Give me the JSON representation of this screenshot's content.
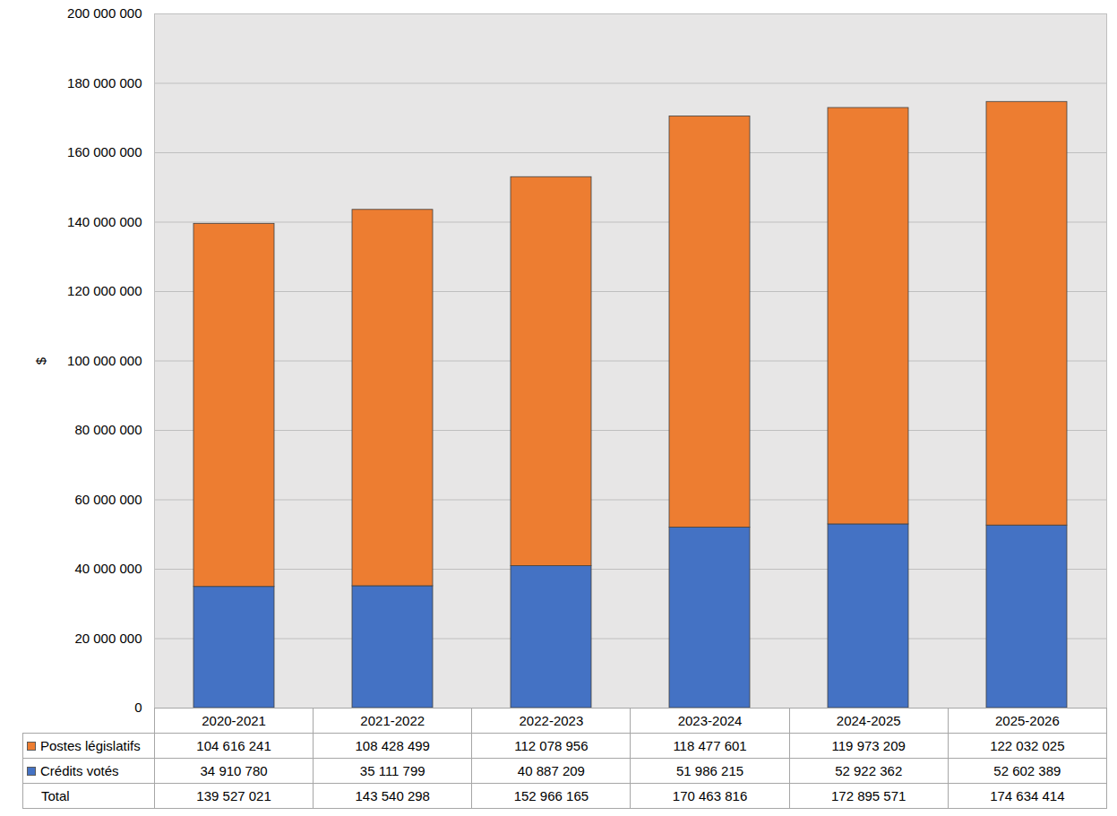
{
  "chart_data": {
    "type": "bar",
    "stacked": true,
    "grid": true,
    "y_label": "$",
    "categories": [
      "2020-2021",
      "2021-2022",
      "2022-2023",
      "2023-2024",
      "2024-2025",
      "2025-2026"
    ],
    "series": [
      {
        "name": "Postes législatifs",
        "color": "#ed7d31",
        "values": [
          104616241,
          108428499,
          112078956,
          118477601,
          119973209,
          122032025
        ],
        "value_labels": [
          "104 616 241",
          "108 428 499",
          "112 078 956",
          "118 477 601",
          "119 973 209",
          "122 032 025"
        ]
      },
      {
        "name": "Crédits votés",
        "color": "#4472c4",
        "values": [
          34910780,
          35111799,
          40887209,
          51986215,
          52922362,
          52602389
        ],
        "value_labels": [
          "34 910 780",
          "35 111 799",
          "40 887 209",
          "51 986 215",
          "52 922 362",
          "52 602 389"
        ]
      }
    ],
    "total": {
      "name": "Total",
      "values": [
        139527021,
        143540298,
        152966165,
        170463816,
        172895571,
        174634414
      ],
      "value_labels": [
        "139 527 021",
        "143 540 298",
        "152 966 165",
        "170 463 816",
        "172 895 571",
        "174 634 414"
      ]
    },
    "ylim": [
      0,
      200000000
    ],
    "yticks": [
      0,
      {
        "value": 20000000,
        "label": "20 000 000"
      },
      {
        "value": 40000000,
        "label": "40 000 000"
      },
      {
        "value": 60000000,
        "label": "60 000 000"
      },
      {
        "value": 80000000,
        "label": "80 000 000"
      },
      {
        "value": 100000000,
        "label": "100 000 000"
      },
      {
        "value": 120000000,
        "label": "120 000 000"
      },
      {
        "value": 140000000,
        "label": "140 000 000"
      },
      {
        "value": 160000000,
        "label": "160 000 000"
      },
      {
        "value": 180000000,
        "label": "180 000 000"
      },
      {
        "value": 200000000,
        "label": "200 000 000"
      }
    ]
  }
}
